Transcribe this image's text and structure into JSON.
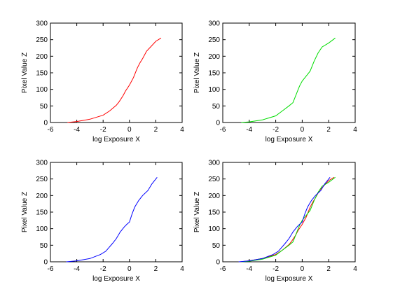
{
  "chart_data": [
    {
      "type": "line",
      "xlabel": "log Exposure X",
      "ylabel": "Pixel Value Z",
      "xlim": [
        -6,
        4
      ],
      "ylim": [
        0,
        300
      ],
      "xticks": [
        -6,
        -4,
        -2,
        0,
        2,
        4
      ],
      "yticks": [
        0,
        50,
        100,
        150,
        200,
        250,
        300
      ],
      "grid": false,
      "series": [
        {
          "color": "#ff0000",
          "x": [
            -4.7,
            -4.0,
            -3.0,
            -2.0,
            -1.5,
            -1.0,
            -0.8,
            -0.5,
            -0.3,
            0.0,
            0.3,
            0.6,
            0.8,
            1.0,
            1.3,
            1.6,
            2.0,
            2.4
          ],
          "y": [
            0,
            3,
            10,
            22,
            35,
            52,
            62,
            80,
            95,
            113,
            135,
            165,
            180,
            193,
            215,
            228,
            245,
            255
          ]
        }
      ]
    },
    {
      "type": "line",
      "xlabel": "log Exposure X",
      "ylabel": "Pixel Value Z",
      "xlim": [
        -6,
        4
      ],
      "ylim": [
        0,
        300
      ],
      "xticks": [
        -6,
        -4,
        -2,
        0,
        2,
        4
      ],
      "yticks": [
        0,
        50,
        100,
        150,
        200,
        250,
        300
      ],
      "grid": false,
      "series": [
        {
          "color": "#00dd00",
          "x": [
            -4.6,
            -4.0,
            -3.0,
            -2.0,
            -1.5,
            -1.0,
            -0.7,
            -0.4,
            -0.2,
            0.0,
            0.3,
            0.6,
            0.9,
            1.2,
            1.5,
            2.0,
            2.5
          ],
          "y": [
            0,
            2,
            8,
            20,
            35,
            50,
            60,
            90,
            110,
            125,
            140,
            155,
            185,
            210,
            228,
            240,
            255
          ]
        }
      ]
    },
    {
      "type": "line",
      "xlabel": "log Exposure X",
      "ylabel": "Pixel Value Z",
      "xlim": [
        -6,
        4
      ],
      "ylim": [
        0,
        300
      ],
      "xticks": [
        -6,
        -4,
        -2,
        0,
        2,
        4
      ],
      "yticks": [
        0,
        50,
        100,
        150,
        200,
        250,
        300
      ],
      "grid": false,
      "series": [
        {
          "color": "#0000ff",
          "x": [
            -4.8,
            -4.0,
            -3.0,
            -2.2,
            -1.8,
            -1.3,
            -1.0,
            -0.7,
            -0.4,
            -0.2,
            0.0,
            0.2,
            0.4,
            0.7,
            1.0,
            1.4,
            1.7,
            2.1
          ],
          "y": [
            0,
            3,
            10,
            22,
            32,
            55,
            70,
            90,
            105,
            113,
            120,
            145,
            165,
            185,
            200,
            215,
            235,
            255
          ]
        }
      ]
    },
    {
      "type": "line",
      "xlabel": "log Exposure X",
      "ylabel": "Pixel Value Z",
      "xlim": [
        -6,
        4
      ],
      "ylim": [
        0,
        300
      ],
      "xticks": [
        -6,
        -4,
        -2,
        0,
        2,
        4
      ],
      "yticks": [
        0,
        50,
        100,
        150,
        200,
        250,
        300
      ],
      "grid": false,
      "series": [
        {
          "color": "#ff0000",
          "x": [
            -4.7,
            -4.0,
            -3.0,
            -2.0,
            -1.5,
            -1.0,
            -0.8,
            -0.5,
            -0.3,
            0.0,
            0.3,
            0.6,
            0.8,
            1.0,
            1.3,
            1.6,
            2.0,
            2.4
          ],
          "y": [
            0,
            3,
            10,
            22,
            35,
            52,
            62,
            80,
            95,
            113,
            135,
            165,
            180,
            193,
            215,
            228,
            245,
            255
          ]
        },
        {
          "color": "#00dd00",
          "x": [
            -4.6,
            -4.0,
            -3.0,
            -2.0,
            -1.5,
            -1.0,
            -0.7,
            -0.4,
            -0.2,
            0.0,
            0.3,
            0.6,
            0.9,
            1.2,
            1.5,
            2.0,
            2.5
          ],
          "y": [
            0,
            2,
            8,
            20,
            35,
            50,
            60,
            90,
            110,
            125,
            140,
            155,
            185,
            210,
            228,
            240,
            255
          ]
        },
        {
          "color": "#0000ff",
          "x": [
            -4.8,
            -4.0,
            -3.0,
            -2.2,
            -1.8,
            -1.3,
            -1.0,
            -0.7,
            -0.4,
            -0.2,
            0.0,
            0.2,
            0.4,
            0.7,
            1.0,
            1.4,
            1.7,
            2.1
          ],
          "y": [
            0,
            3,
            10,
            22,
            32,
            55,
            70,
            90,
            105,
            113,
            120,
            145,
            165,
            185,
            200,
            215,
            235,
            255
          ]
        }
      ]
    }
  ]
}
